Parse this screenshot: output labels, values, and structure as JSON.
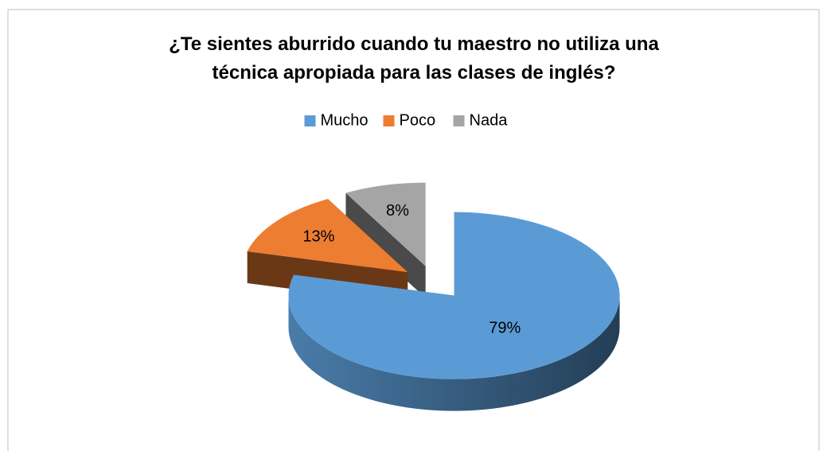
{
  "chart_data": {
    "type": "pie",
    "title": "¿Te sientes aburrido cuando tu maestro no utiliza una técnica apropiada para las clases de inglés?",
    "categories": [
      "Mucho",
      "Poco",
      "Nada"
    ],
    "values": [
      79,
      13,
      8
    ],
    "value_labels": [
      "79%",
      "13%",
      "8%"
    ],
    "colors": [
      "#5b9bd5",
      "#ed7d31",
      "#a5a5a5"
    ],
    "legend": "top"
  }
}
